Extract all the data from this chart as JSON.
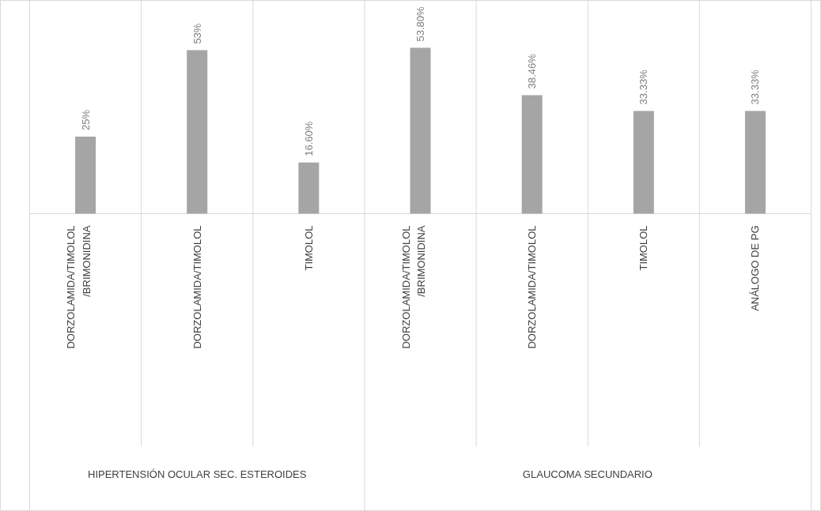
{
  "chart_data": {
    "type": "bar",
    "categories": [
      "DORZOLAMIDA/TIMOLOL /BRIMONIDINA",
      "DORZOLAMIDA/TIMOLOL",
      "TIMOLOL",
      "DORZOLAMIDA/TIMOLOL /BRIMONIDINA",
      "DORZOLAMIDA/TIMOLOL",
      "TIMOLOL",
      "ANÁLOGO DE PG"
    ],
    "values": [
      25,
      53,
      16.6,
      53.8,
      38.46,
      33.33,
      33.33
    ],
    "value_labels": [
      "25%",
      "53%",
      "16.60%",
      "53.80%",
      "38.46%",
      "33.33%",
      "33.33%"
    ],
    "color": "#a5a5a5",
    "annotations": [
      "HIPERTENSIÓN OCULAR SEC. ESTEROIDES",
      "GLAUCOMA SECUNDARIO"
    ],
    "grid": "x"
  }
}
